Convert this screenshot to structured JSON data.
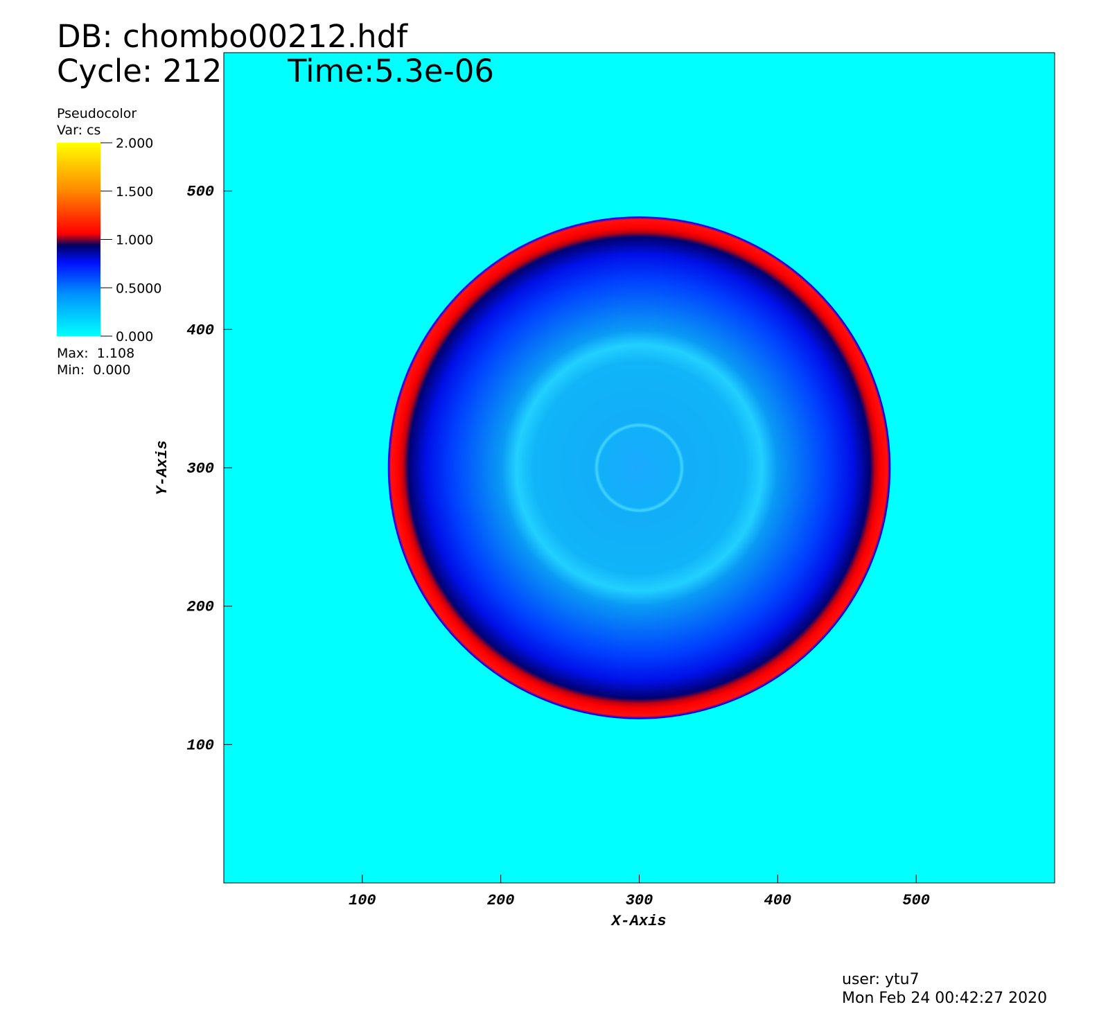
{
  "header": {
    "db": "DB: chombo00212.hdf",
    "cycle": "Cycle: 212",
    "time": "Time:5.3e-06"
  },
  "chart_data": {
    "type": "pseudocolor",
    "plot": "Pseudocolor",
    "variable": "Var: cs",
    "x_label": "X-Axis",
    "y_label": "Y-Axis",
    "xlim": [
      0,
      600
    ],
    "ylim": [
      0,
      600
    ],
    "xticks": [
      100,
      200,
      300,
      400,
      500
    ],
    "yticks": [
      100,
      200,
      300,
      400,
      500
    ],
    "colorbar": {
      "lim": [
        0,
        2
      ],
      "ticks": [
        {
          "value": 0,
          "label": "0.000"
        },
        {
          "value": 0.5,
          "label": "0.5000"
        },
        {
          "value": 1,
          "label": "1.000"
        },
        {
          "value": 1.5,
          "label": "1.500"
        },
        {
          "value": 2,
          "label": "2.000"
        }
      ]
    },
    "max": "Max:  1.108",
    "min": "Min:  0.000"
  },
  "footer": {
    "user": "user: ytu7",
    "date": "Mon Feb 24 00:42:27 2020"
  }
}
